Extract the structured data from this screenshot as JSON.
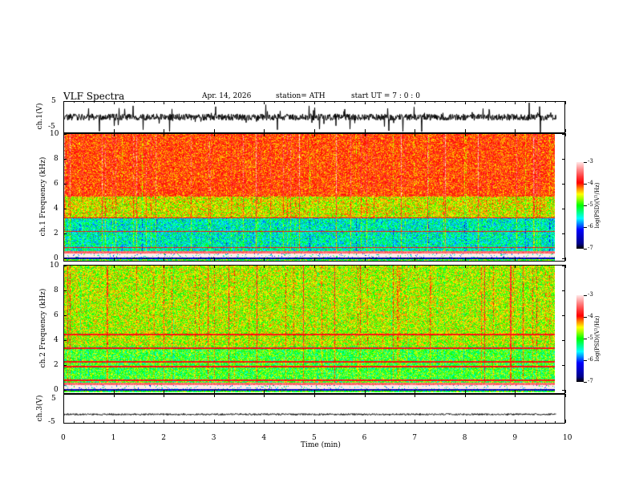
{
  "header": {
    "title": "VLF Spectra",
    "date": "Apr. 14, 2026",
    "station": "station= ATH",
    "start": "start  UT  =   7  : 0  : 0"
  },
  "colors": {
    "trace": "#000000"
  },
  "chart_data": [
    {
      "type": "line",
      "name": "ch1 waveform",
      "ylabel": "ch.1(V)",
      "ylim": [
        -5,
        5
      ],
      "yticks": [
        "5",
        "-5"
      ],
      "xlim": [
        0,
        10
      ],
      "data_xrange": [
        0,
        9.8
      ],
      "baseline": 0
    },
    {
      "type": "heatmap",
      "name": "ch1 spectrogram",
      "ylabel": "ch.1 Frequency (kHz)",
      "ylim": [
        0,
        10
      ],
      "yticks": [
        "0",
        "2",
        "4",
        "6",
        "8",
        "10"
      ],
      "xlim": [
        0,
        10
      ],
      "colorbar": {
        "label": "log(PSD)(V²/Hz)",
        "range": [
          -7,
          -3
        ],
        "ticks": [
          "-3",
          "-4",
          "-5",
          "-6",
          "-7"
        ]
      },
      "bands": [
        {
          "f": [
            5,
            10
          ],
          "level": -4.1
        },
        {
          "f": [
            3.3,
            5
          ],
          "level": -4.6
        },
        {
          "f": [
            0.6,
            3.3
          ],
          "level": -5.4
        },
        {
          "f": [
            0,
            0.5
          ],
          "level": -6.5
        }
      ]
    },
    {
      "type": "heatmap",
      "name": "ch2 spectrogram",
      "ylabel": "ch.2 Frequency (kHz)",
      "ylim": [
        0,
        10
      ],
      "yticks": [
        "0",
        "2",
        "4",
        "6",
        "8",
        "10"
      ],
      "xlim": [
        0,
        10
      ],
      "colorbar": {
        "label": "log(PSD)(V²/Hz)",
        "range": [
          -7,
          -3
        ],
        "ticks": [
          "-3",
          "-4",
          "-5",
          "-6",
          "-7"
        ]
      },
      "bands": [
        {
          "f": [
            3.5,
            10
          ],
          "level": -4.7
        },
        {
          "f": [
            0.6,
            3.5
          ],
          "level": -5.0
        },
        {
          "f": [
            0,
            0.5
          ],
          "level": -6.5
        }
      ]
    },
    {
      "type": "line",
      "name": "ch3 waveform",
      "ylabel": "ch.3(V)",
      "ylim": [
        -5,
        5
      ],
      "yticks": [
        "5",
        "-5"
      ],
      "xlim": [
        0,
        10
      ],
      "data_xrange": [
        0,
        9.8
      ],
      "baseline": -2
    },
    {
      "xlabel": "Time (min)",
      "xticks": [
        "0",
        "1",
        "2",
        "3",
        "4",
        "5",
        "6",
        "7",
        "8",
        "9",
        "10"
      ]
    }
  ]
}
